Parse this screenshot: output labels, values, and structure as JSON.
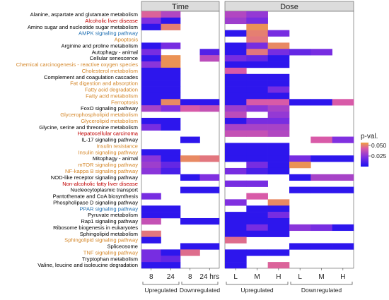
{
  "chart_data": {
    "type": "heatmap",
    "panels": [
      {
        "title": "Time",
        "columns": [
          "8",
          "24",
          "8",
          "24 hrs"
        ],
        "groups": [
          {
            "label": "Upregulated",
            "span": [
              0,
              1
            ]
          },
          {
            "label": "Downregulated",
            "span": [
              2,
              3
            ]
          }
        ]
      },
      {
        "title": "Dose",
        "columns": [
          "L",
          "M",
          "H",
          "L",
          "M",
          "H"
        ],
        "groups": [
          {
            "label": "Upregulated",
            "span": [
              0,
              2
            ]
          },
          {
            "label": "Downregulated",
            "span": [
              3,
              5
            ]
          }
        ]
      }
    ],
    "rows": [
      {
        "label": "Alanine, aspartate and glutamate metabolism",
        "color": "#000000"
      },
      {
        "label": "Alcoholic liver disease",
        "color": "#c00000"
      },
      {
        "label": "Amino sugar and nucleotide sugar metabolism",
        "color": "#000000"
      },
      {
        "label": "AMPK signaling pathway",
        "color": "#1f6fb2"
      },
      {
        "label": "Apoptosis",
        "color": "#d4872a"
      },
      {
        "label": "Arginine and proline metabolism",
        "color": "#000000"
      },
      {
        "label": "Autophagy - animal",
        "color": "#000000"
      },
      {
        "label": "Cellular senescence",
        "color": "#000000"
      },
      {
        "label": "Chemical carcinogenesis - reactive oxygen species",
        "color": "#d4872a"
      },
      {
        "label": "Cholesterol metabolism",
        "color": "#d4872a"
      },
      {
        "label": "Complement and coagulation cascades",
        "color": "#000000"
      },
      {
        "label": "Fat digestion and absorption",
        "color": "#d4872a"
      },
      {
        "label": "Fatty acid degradation",
        "color": "#d4872a"
      },
      {
        "label": "Fatty acid metabolism",
        "color": "#d4872a"
      },
      {
        "label": "Ferroptosis",
        "color": "#d4872a"
      },
      {
        "label": "FoxO signaling pathway",
        "color": "#000000"
      },
      {
        "label": "Glycerophospholipid metabolism",
        "color": "#d4872a"
      },
      {
        "label": "Glycerolipid metabolism",
        "color": "#d4872a"
      },
      {
        "label": "Glycine, serine and threonine metabolism",
        "color": "#000000"
      },
      {
        "label": "Hepatocellular carcinoma",
        "color": "#c00000"
      },
      {
        "label": "IL-17 signaling pathway",
        "color": "#000000"
      },
      {
        "label": "Insulin resistance",
        "color": "#d4872a"
      },
      {
        "label": "Insulin signaling pathway",
        "color": "#d4872a"
      },
      {
        "label": "Mitophagy - animal",
        "color": "#000000"
      },
      {
        "label": "mTOR signaling pathway",
        "color": "#d4872a"
      },
      {
        "label": "NF-kappa B signaling pathway",
        "color": "#d4872a"
      },
      {
        "label": "NOD-like receptor signaling pathway",
        "color": "#000000"
      },
      {
        "label": "Non-alcoholic fatty liver disease",
        "color": "#c00000"
      },
      {
        "label": "Nucleocytoplasmic transport",
        "color": "#000000"
      },
      {
        "label": "Pantothenate and CoA biosynthesis",
        "color": "#000000"
      },
      {
        "label": "Phospholipase D signaling pathway",
        "color": "#000000"
      },
      {
        "label": "PPAR signaling pathway",
        "color": "#1f6fb2"
      },
      {
        "label": "Pyruvate metabolism",
        "color": "#000000"
      },
      {
        "label": "Rap1 signaling pathway",
        "color": "#000000"
      },
      {
        "label": "Ribosome biogenesis in eukaryotes",
        "color": "#000000"
      },
      {
        "label": "Sphingolipid metabolism",
        "color": "#000000"
      },
      {
        "label": "Sphingolipid signaling pathway",
        "color": "#d4872a"
      },
      {
        "label": "Spliceosome",
        "color": "#000000"
      },
      {
        "label": "TNF signaling pathway",
        "color": "#d4872a"
      },
      {
        "label": "Tryptophan metabolism",
        "color": "#000000"
      },
      {
        "label": "Valine, leucine and isoleucine degradation",
        "color": "#000000"
      }
    ],
    "values_time": [
      [
        0.042,
        0.032,
        null,
        null
      ],
      [
        0.022,
        0.004,
        null,
        null
      ],
      [
        0.004,
        0.048,
        null,
        null
      ],
      [
        null,
        null,
        null,
        null
      ],
      [
        null,
        null,
        null,
        null
      ],
      [
        0.004,
        0.02,
        null,
        null
      ],
      [
        0.02,
        null,
        null,
        0.012
      ],
      [
        0.005,
        0.052,
        null,
        0.034
      ],
      [
        0.024,
        0.052,
        null,
        null
      ],
      [
        0.004,
        0.004,
        null,
        null
      ],
      [
        0.004,
        0.004,
        null,
        null
      ],
      [
        0.004,
        0.004,
        null,
        null
      ],
      [
        0.004,
        0.004,
        null,
        null
      ],
      [
        0.004,
        0.004,
        null,
        null
      ],
      [
        0.004,
        0.05,
        0.004,
        0.004
      ],
      [
        0.03,
        0.022,
        0.04,
        0.036
      ],
      [
        null,
        null,
        null,
        null
      ],
      [
        0.004,
        0.004,
        null,
        null
      ],
      [
        0.02,
        0.004,
        null,
        null
      ],
      [
        null,
        null,
        null,
        null
      ],
      [
        null,
        null,
        0.004,
        null
      ],
      [
        null,
        null,
        null,
        null
      ],
      [
        0.004,
        0.004,
        null,
        null
      ],
      [
        0.024,
        0.004,
        0.05,
        0.046
      ],
      [
        0.028,
        0.016,
        null,
        null
      ],
      [
        0.024,
        0.01,
        null,
        null
      ],
      [
        null,
        null,
        0.004,
        0.022
      ],
      [
        null,
        null,
        null,
        null
      ],
      [
        null,
        null,
        0.004,
        0.004
      ],
      [
        0.02,
        null,
        null,
        null
      ],
      [
        null,
        null,
        null,
        null
      ],
      [
        0.004,
        0.004,
        null,
        null
      ],
      [
        0.004,
        0.004,
        null,
        null
      ],
      [
        0.036,
        null,
        0.004,
        0.004
      ],
      [
        null,
        null,
        null,
        null
      ],
      [
        0.046,
        null,
        null,
        null
      ],
      [
        0.004,
        null,
        null,
        null
      ],
      [
        null,
        null,
        0.004,
        0.004
      ],
      [
        0.02,
        0.004,
        0.044,
        null
      ],
      [
        0.02,
        0.016,
        null,
        null
      ],
      [
        0.004,
        0.004,
        null,
        null
      ]
    ],
    "values_dose": [
      [
        0.032,
        0.026,
        null,
        null,
        null,
        null
      ],
      [
        0.028,
        0.02,
        null,
        null,
        null,
        null
      ],
      [
        null,
        0.052,
        null,
        null,
        null,
        null
      ],
      [
        0.004,
        0.048,
        0.02,
        null,
        null,
        null
      ],
      [
        null,
        0.046,
        null,
        null,
        null,
        null
      ],
      [
        0.004,
        0.02,
        0.05,
        null,
        null,
        null
      ],
      [
        0.004,
        0.046,
        0.02,
        0.016,
        0.02,
        null
      ],
      [
        0.02,
        0.016,
        0.004,
        null,
        null,
        null
      ],
      [
        0.004,
        0.004,
        0.004,
        null,
        null,
        null
      ],
      [
        0.04,
        null,
        null,
        null,
        null,
        null
      ],
      [
        0.004,
        0.004,
        0.004,
        null,
        null,
        null
      ],
      [
        0.004,
        0.004,
        0.004,
        null,
        null,
        null
      ],
      [
        0.004,
        0.004,
        0.02,
        null,
        null,
        null
      ],
      [
        0.004,
        0.004,
        0.004,
        null,
        null,
        null
      ],
      [
        0.004,
        0.04,
        0.04,
        0.004,
        0.004,
        0.04
      ],
      [
        0.028,
        0.024,
        0.03,
        null,
        null,
        null
      ],
      [
        0.034,
        null,
        0.026,
        null,
        null,
        null
      ],
      [
        0.004,
        0.02,
        0.02,
        null,
        null,
        null
      ],
      [
        0.03,
        0.03,
        0.03,
        null,
        null,
        null
      ],
      [
        0.036,
        0.036,
        0.032,
        null,
        null,
        null
      ],
      [
        null,
        null,
        null,
        null,
        0.04,
        0.022
      ],
      [
        0.004,
        0.004,
        0.004,
        null,
        null,
        null
      ],
      [
        0.004,
        0.004,
        0.004,
        null,
        null,
        null
      ],
      [
        0.004,
        0.004,
        0.004,
        0.02,
        0.004,
        0.004
      ],
      [
        null,
        0.02,
        0.004,
        0.052,
        null,
        null
      ],
      [
        0.02,
        0.01,
        0.004,
        null,
        null,
        null
      ],
      [
        null,
        null,
        null,
        0.004,
        0.03,
        0.03
      ],
      [
        0.02,
        0.02,
        null,
        null,
        null,
        null
      ],
      [
        null,
        null,
        null,
        0.004,
        0.004,
        0.004
      ],
      [
        null,
        0.04,
        null,
        null,
        null,
        null
      ],
      [
        0.022,
        null,
        0.05,
        null,
        null,
        null
      ],
      [
        null,
        0.004,
        0.004,
        null,
        null,
        null
      ],
      [
        0.004,
        0.004,
        0.02,
        null,
        null,
        null
      ],
      [
        0.004,
        0.004,
        0.004,
        null,
        null,
        null
      ],
      [
        0.004,
        0.02,
        0.004,
        0.024,
        0.02,
        0.004
      ],
      [
        0.004,
        0.004,
        0.004,
        null,
        null,
        null
      ],
      [
        0.044,
        null,
        null,
        null,
        null,
        null
      ],
      [
        null,
        null,
        null,
        0.004,
        0.004,
        0.004
      ],
      [
        0.004,
        0.004,
        0.004,
        null,
        null,
        null
      ],
      [
        0.004,
        null,
        null,
        null,
        null,
        null
      ],
      [
        0.004,
        null,
        0.042,
        null,
        null,
        null
      ]
    ],
    "legend": {
      "title": "p-val.",
      "ticks": [
        "0.050",
        "0.025"
      ],
      "tick_values": [
        0.05,
        0.025
      ],
      "range": [
        0.0,
        0.055
      ],
      "colors": [
        "#1a10f0",
        "#8030e0",
        "#d85aa8",
        "#f0a040"
      ]
    },
    "grid": false,
    "legend_position": "right",
    "colors": {
      "panel_header_bg": "#dcdcdc",
      "empty_cell": "#ffffff",
      "row_border": "#e8c8e8"
    }
  }
}
